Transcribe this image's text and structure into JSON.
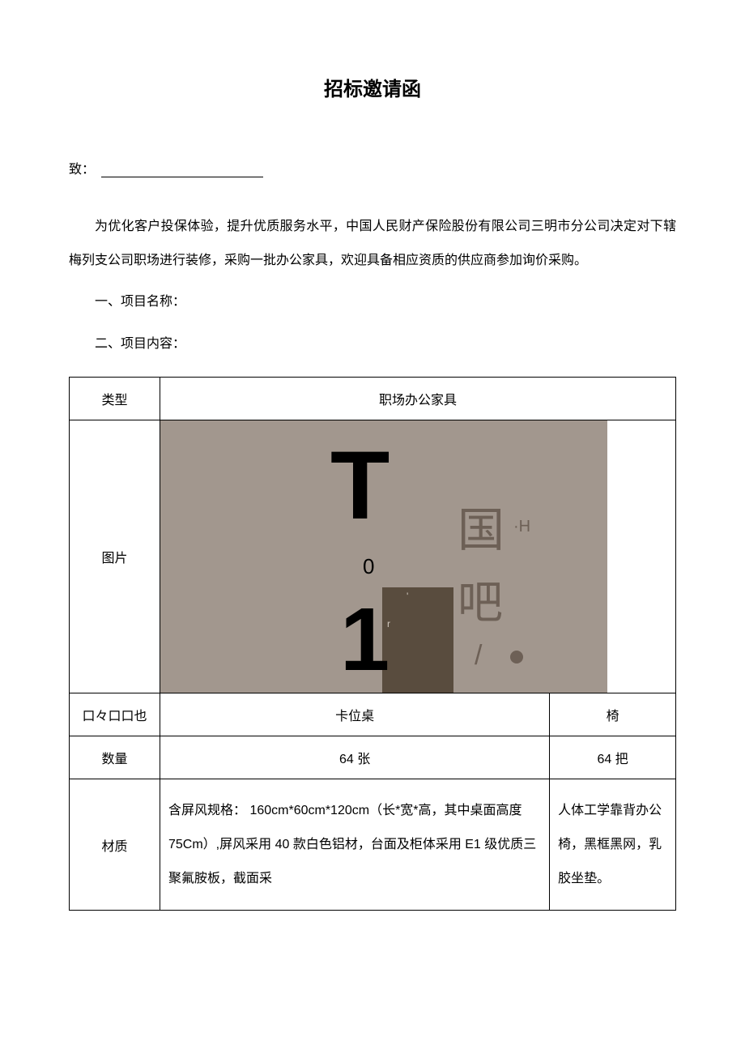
{
  "title": "招标邀请函",
  "salutation_label": "致：",
  "body": "为优化客户投保体验，提升优质服务水平，中国人民财产保险股份有限公司三明市分公司决定对下辖梅列支公司职场进行装修，采购一批办公家具，欢迎具备相应资质的供应商参加询价采购。",
  "section1": "一、项目名称：",
  "section2": "二、项目内容：",
  "table": {
    "row_type": {
      "label": "类型",
      "value": "职场办公家具"
    },
    "row_image": {
      "label": "图片"
    },
    "row_product": {
      "label": "口々口口也",
      "col1": "卡位桌",
      "col2": "椅"
    },
    "row_qty": {
      "label": "数量",
      "col1": "64 张",
      "col2": "64 把"
    },
    "row_material": {
      "label": "材质",
      "col1": "含屏风规格：\n160cm*60cm*120cm（长*宽*高，其中桌面高度 75Cm）,屏风采用 40 款白色铝材，台面及柜体采用 E1 级优质三聚氟胺板，截面采",
      "col2": "人体工学靠背办公椅，黑框黑网，乳胶坐垫。"
    }
  },
  "placeholder": {
    "bg_color": "#a2978e",
    "block_color": "#594c3e",
    "muted_color": "#6d6056",
    "glyph_T": "T",
    "glyph_1": "1",
    "glyph_0": "0",
    "glyph_guo": "国",
    "glyph_H": "·H",
    "glyph_ba": "吧",
    "glyph_slash": "/",
    "glyph_tick1": "'",
    "glyph_tick2": "r"
  },
  "colors": {
    "page_bg": "#ffffff",
    "text": "#000000",
    "border": "#000000"
  },
  "typography": {
    "title_fontsize": 24,
    "body_fontsize": 16,
    "line_height": 2.6
  }
}
